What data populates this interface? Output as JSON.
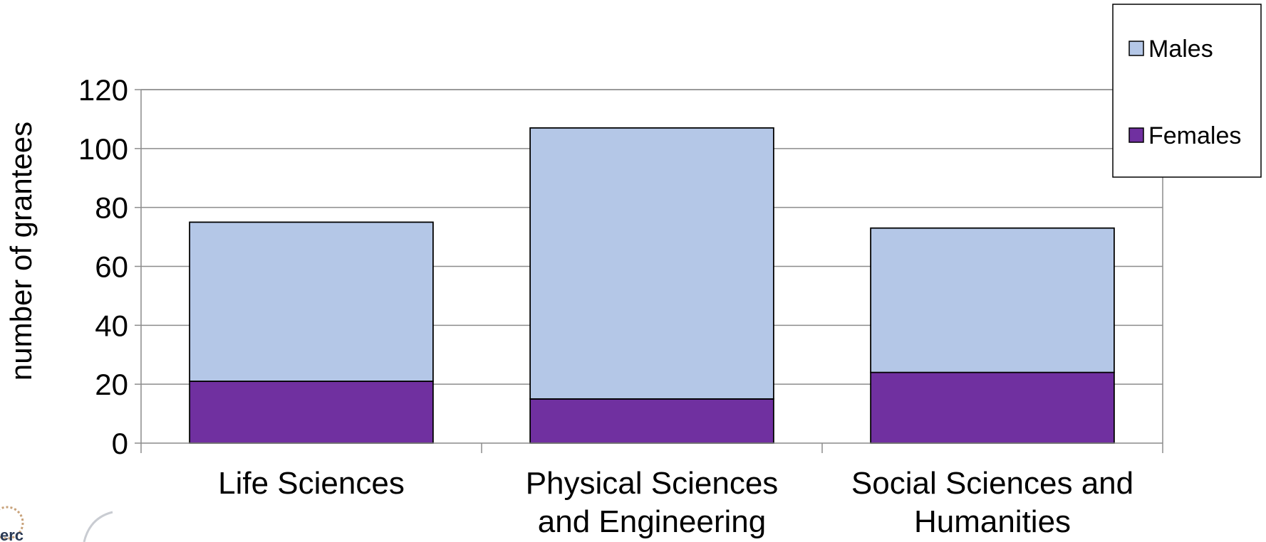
{
  "chart_data": {
    "type": "bar",
    "stacked": true,
    "categories": [
      [
        "Life Sciences"
      ],
      [
        "Physical Sciences",
        "and Engineering"
      ],
      [
        "Social Sciences and",
        "Humanities"
      ]
    ],
    "series": [
      {
        "name": "Females",
        "values": [
          21,
          15,
          24
        ],
        "color": "#7030a0"
      },
      {
        "name": "Males",
        "values": [
          54,
          92,
          49
        ],
        "color": "#b4c7e7"
      }
    ],
    "legend_order": [
      "Males",
      "Females"
    ],
    "title": "",
    "xlabel": "",
    "ylabel": "number of grantees",
    "ylim": [
      0,
      120
    ],
    "yticks": [
      0,
      20,
      40,
      60,
      80,
      100,
      120
    ],
    "grid": true,
    "legend_position": "top-right"
  },
  "logo": {
    "text": "erc"
  }
}
